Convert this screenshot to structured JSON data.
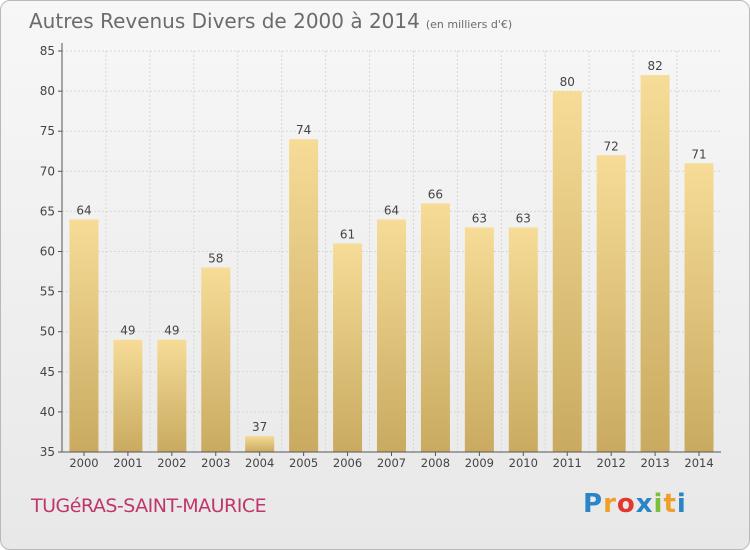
{
  "title": "Autres Revenus Divers de 2000 à 2014",
  "subtitle": "(en milliers d'€)",
  "commune": "TUGéRAS-SAINT-MAURICE",
  "logo": {
    "letters": [
      "P",
      "r",
      "o",
      "x",
      "i",
      "t",
      "i"
    ],
    "colors": [
      "#2b84c6",
      "#f0a02a",
      "#e4382e",
      "#2b84c6",
      "#7cbf3a",
      "#f0a02a",
      "#2b84c6"
    ]
  },
  "colors": {
    "bar_light": "#f6dc97",
    "bar_dark": "#c9aa60",
    "axis": "#555555",
    "grid": "#d6d6d6"
  },
  "chart_data": {
    "type": "bar",
    "categories": [
      "2000",
      "2001",
      "2002",
      "2003",
      "2004",
      "2005",
      "2006",
      "2007",
      "2008",
      "2009",
      "2010",
      "2011",
      "2012",
      "2013",
      "2014"
    ],
    "values": [
      64,
      49,
      49,
      58,
      37,
      74,
      61,
      64,
      66,
      63,
      63,
      80,
      72,
      82,
      71
    ],
    "ylim": [
      35,
      85
    ],
    "yticks": [
      35,
      40,
      45,
      50,
      55,
      60,
      65,
      70,
      75,
      80,
      85
    ],
    "grid": true
  }
}
